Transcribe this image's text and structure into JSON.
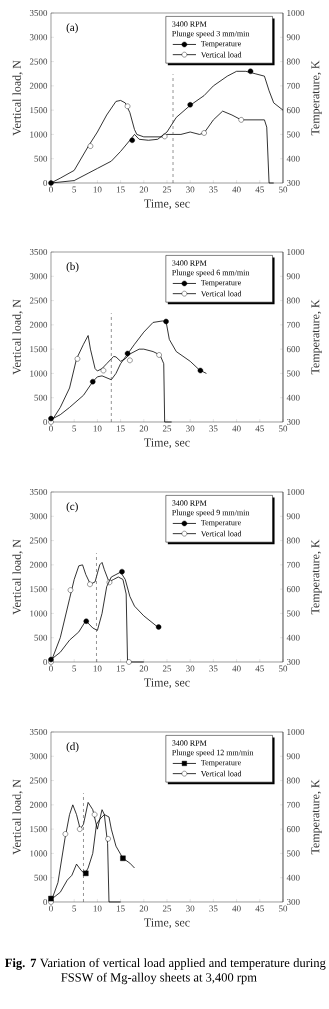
{
  "chart_data": [
    {
      "type": "line",
      "xlabel": "Time, sec",
      "ylabel": "Vertical load, N",
      "y2label": "Temperature, K",
      "legend": "top right",
      "legend_title": "3400 RPM",
      "subtitle": "Plunge speed 3 mm/min",
      "annotations": [
        "(a)"
      ],
      "xlim": [
        0,
        50
      ],
      "ylim": [
        0,
        3500
      ],
      "y2lim": [
        300,
        1000
      ],
      "xticks": [
        0,
        5,
        10,
        15,
        20,
        25,
        30,
        35,
        40,
        45,
        50
      ],
      "yticks": [
        0,
        500,
        1000,
        1500,
        2000,
        2500,
        3000,
        3500
      ],
      "y2ticks": [
        300,
        400,
        500,
        600,
        700,
        800,
        900,
        1000
      ],
      "ref_lines": [
        {
          "axis": "x",
          "value": 26.3,
          "line_style": "dashed"
        }
      ],
      "series": [
        {
          "name": "Temperature",
          "type": "line",
          "axis": "y2",
          "color": "#000000",
          "x": [
            0,
            5,
            8,
            10,
            13,
            15,
            17,
            18,
            19,
            21,
            23,
            25,
            27,
            30,
            33,
            35,
            38,
            40,
            42,
            44,
            46,
            47,
            48,
            50
          ],
          "values": [
            300,
            310,
            340,
            360,
            390,
            430,
            476,
            500,
            480,
            476,
            480,
            510,
            570,
            620,
            660,
            700,
            740,
            760,
            760,
            750,
            740,
            680,
            630,
            600
          ]
        },
        {
          "type": "scatter",
          "axis": "y2",
          "marker": "circle",
          "color": "#000000",
          "x": [
            0,
            17.5,
            30,
            43
          ],
          "values": [
            300,
            476,
            622,
            760
          ]
        },
        {
          "name": "Vertical load",
          "type": "line",
          "color": "#000000",
          "x": [
            0,
            2,
            5,
            8,
            10,
            12,
            14,
            15,
            16,
            17,
            18,
            18.5,
            20,
            22,
            24,
            25,
            28,
            30,
            32,
            33,
            35,
            37,
            39,
            41,
            43,
            45,
            46,
            46.5,
            47,
            48
          ],
          "values": [
            0,
            100,
            260,
            750,
            1050,
            1400,
            1680,
            1700,
            1650,
            1450,
            1100,
            1000,
            950,
            950,
            950,
            1000,
            1000,
            1050,
            1000,
            1030,
            1300,
            1480,
            1400,
            1300,
            1300,
            1300,
            1300,
            1150,
            0,
            0
          ]
        },
        {
          "type": "scatter",
          "marker": "circle",
          "color": "#ffffff",
          "x": [
            8.5,
            16.5,
            24.5,
            33,
            41
          ],
          "values": [
            760,
            1580,
            960,
            1030,
            1300
          ]
        }
      ]
    },
    {
      "type": "line",
      "xlabel": "Time, sec",
      "ylabel": "Vertical load, N",
      "y2label": "Temperature, K",
      "legend": "top right",
      "legend_title": "3400 RPM",
      "subtitle": "Plunge speed 6 mm/min",
      "annotations": [
        "(b)"
      ],
      "xlim": [
        0,
        50
      ],
      "ylim": [
        0,
        3500
      ],
      "y2lim": [
        300,
        1000
      ],
      "xticks": [
        0,
        5,
        10,
        15,
        20,
        25,
        30,
        35,
        40,
        45,
        50
      ],
      "yticks": [
        0,
        500,
        1000,
        1500,
        2000,
        2500,
        3000,
        3500
      ],
      "y2ticks": [
        300,
        400,
        500,
        600,
        700,
        800,
        900,
        1000
      ],
      "ref_lines": [
        {
          "axis": "x",
          "value": 13,
          "line_style": "dashed"
        }
      ],
      "series": [
        {
          "name": "Temperature",
          "type": "line",
          "axis": "y2",
          "color": "#000000",
          "x": [
            0,
            2,
            4,
            7,
            9,
            10,
            11,
            13,
            14,
            15,
            16.5,
            18,
            20,
            22,
            24,
            24.8,
            25.5,
            27,
            30,
            32,
            33.5
          ],
          "values": [
            310,
            330,
            360,
            410,
            466,
            486,
            490,
            474,
            500,
            540,
            580,
            620,
            670,
            710,
            716,
            714,
            640,
            590,
            550,
            514,
            500
          ]
        },
        {
          "type": "scatter",
          "axis": "y2",
          "marker": "circle",
          "color": "#000000",
          "x": [
            0,
            9,
            16.5,
            24.8,
            32.2
          ],
          "values": [
            314,
            466,
            582,
            714,
            512
          ]
        },
        {
          "name": "Vertical load",
          "type": "line",
          "color": "#000000",
          "x": [
            0,
            2,
            4,
            5.5,
            7,
            8,
            8.5,
            9.5,
            10,
            11,
            12,
            13,
            13.5,
            14,
            15,
            16,
            17,
            19,
            20,
            22,
            23.5,
            24.3,
            24.5,
            26
          ],
          "values": [
            0,
            300,
            700,
            1300,
            1600,
            1780,
            1500,
            1100,
            1050,
            1100,
            1200,
            1300,
            1350,
            1340,
            1250,
            1300,
            1400,
            1500,
            1500,
            1450,
            1380,
            1200,
            0,
            0
          ]
        },
        {
          "type": "scatter",
          "marker": "circle",
          "color": "#ffffff",
          "x": [
            0,
            5.7,
            11.3,
            17,
            23.3
          ],
          "values": [
            0,
            1300,
            1060,
            1270,
            1380
          ]
        }
      ]
    },
    {
      "type": "line",
      "xlabel": "Time, sec",
      "ylabel": "Vertical load, N",
      "y2label": "Temperature, K",
      "legend": "top right",
      "legend_title": "3400 RPM",
      "subtitle": "Plunge speed 9 mm/min",
      "annotations": [
        "(c)"
      ],
      "xlim": [
        0,
        50
      ],
      "ylim": [
        0,
        3500
      ],
      "y2lim": [
        300,
        1000
      ],
      "xticks": [
        0,
        5,
        10,
        15,
        20,
        25,
        30,
        35,
        40,
        45,
        50
      ],
      "yticks": [
        0,
        500,
        1000,
        1500,
        2000,
        2500,
        3000,
        3500
      ],
      "y2ticks": [
        300,
        400,
        500,
        600,
        700,
        800,
        900,
        1000
      ],
      "ref_lines": [
        {
          "axis": "x",
          "value": 9.8,
          "line_style": "dashed"
        }
      ],
      "series": [
        {
          "name": "Temperature",
          "type": "line",
          "axis": "y2",
          "color": "#000000",
          "x": [
            0,
            2,
            4,
            6,
            7.5,
            9,
            10,
            11,
            12,
            13,
            14,
            15,
            16,
            17,
            18,
            20,
            23
          ],
          "values": [
            310,
            340,
            390,
            424,
            470,
            440,
            430,
            500,
            610,
            650,
            660,
            670,
            640,
            570,
            530,
            490,
            444
          ]
        },
        {
          "type": "scatter",
          "axis": "y2",
          "marker": "circle",
          "color": "#000000",
          "x": [
            0,
            7.6,
            15.3,
            23.2
          ],
          "values": [
            310,
            468,
            672,
            444
          ]
        },
        {
          "name": "Vertical load",
          "type": "line",
          "color": "#000000",
          "x": [
            0,
            2,
            4,
            5,
            6,
            6.8,
            7.5,
            8.5,
            9.5,
            10.5,
            11,
            11.5,
            12.5,
            13.5,
            14.5,
            15.5,
            16.2,
            16.5,
            20
          ],
          "values": [
            0,
            500,
            1300,
            1700,
            1980,
            2000,
            1800,
            1600,
            1650,
            2000,
            2050,
            1900,
            1650,
            1700,
            1750,
            1700,
            1400,
            0,
            0
          ]
        },
        {
          "type": "scatter",
          "marker": "circle",
          "color": "#ffffff",
          "x": [
            0,
            4.2,
            8.4,
            12.6,
            16.8
          ],
          "values": [
            0,
            1480,
            1600,
            1640,
            0
          ]
        }
      ]
    },
    {
      "type": "line",
      "xlabel": "Time, sec",
      "ylabel": "Vertical load, N",
      "y2label": "Temperature, K",
      "legend": "top right",
      "legend_title": "3400 RPM",
      "subtitle": "Plunge speed 12 mm/min",
      "annotations": [
        "(d)",
        "**Fig. 7** Variation of vertical load applied and temperature during FSSW of Mg-alloy sheets at 3,400 rpm"
      ],
      "xlim": [
        0,
        50
      ],
      "ylim": [
        0,
        3500
      ],
      "y2lim": [
        300,
        1000
      ],
      "xticks": [
        0,
        5,
        10,
        15,
        20,
        25,
        30,
        35,
        40,
        45,
        50
      ],
      "yticks": [
        0,
        500,
        1000,
        1500,
        2000,
        2500,
        3000,
        3500
      ],
      "y2ticks": [
        300,
        400,
        500,
        600,
        700,
        800,
        900,
        1000
      ],
      "ref_lines": [
        {
          "axis": "x",
          "value": 7,
          "line_style": "dashed"
        }
      ],
      "series": [
        {
          "name": "Temperature",
          "type": "line",
          "axis": "y2",
          "color": "#000000",
          "x": [
            0,
            2,
            3.5,
            4.5,
            5.5,
            6.5,
            7.3,
            8,
            9,
            9.8,
            10.5,
            11.5,
            12.5,
            13,
            14,
            15.5,
            17,
            18
          ],
          "values": [
            310,
            340,
            390,
            410,
            456,
            430,
            416,
            440,
            500,
            620,
            640,
            660,
            650,
            600,
            530,
            480,
            460,
            440
          ]
        },
        {
          "type": "scatter",
          "axis": "y2",
          "marker": "square",
          "color": "#000000",
          "x": [
            0,
            7.5,
            15.5
          ],
          "values": [
            314,
            418,
            480
          ]
        },
        {
          "name": "Vertical load",
          "type": "line",
          "color": "#000000",
          "x": [
            0,
            1.5,
            3,
            4,
            4.7,
            5.5,
            6.3,
            7,
            8,
            9,
            10,
            11,
            11.5,
            12.2,
            12.5,
            15
          ],
          "values": [
            0,
            400,
            1300,
            1800,
            2000,
            1800,
            1500,
            1600,
            2050,
            1900,
            1500,
            1900,
            1800,
            1200,
            0,
            0
          ]
        },
        {
          "type": "scatter",
          "marker": "circle",
          "color": "#ffffff",
          "x": [
            0,
            3.1,
            6.2,
            9.4,
            12.3
          ],
          "values": [
            0,
            1400,
            1500,
            1800,
            1300
          ]
        }
      ]
    }
  ]
}
